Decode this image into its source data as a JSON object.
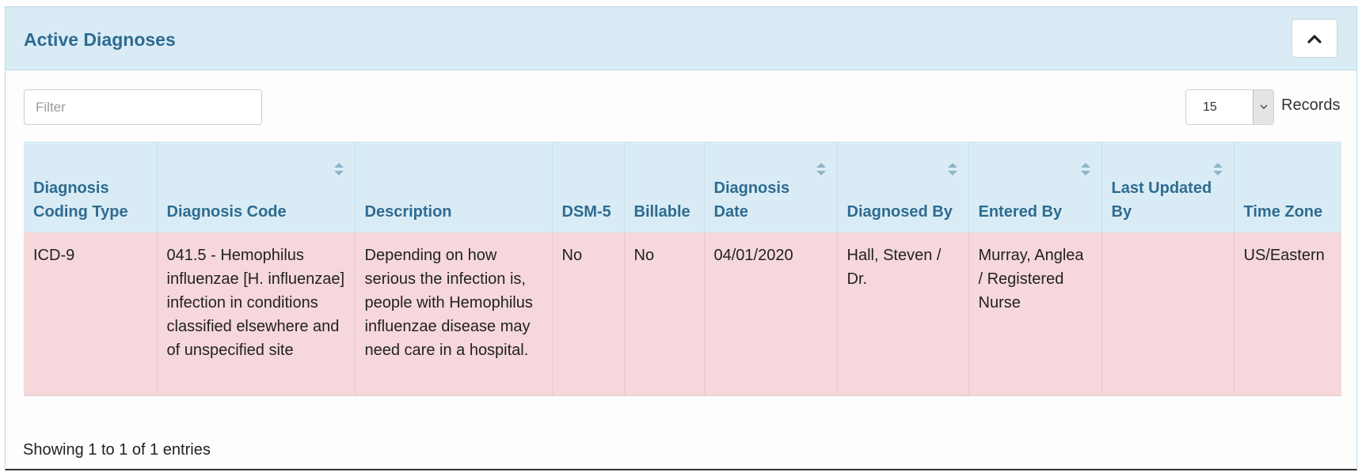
{
  "panel": {
    "title": "Active Diagnoses",
    "collapse_icon": "chevron-up-icon"
  },
  "controls": {
    "filter_placeholder": "Filter",
    "filter_value": "",
    "records_value": "15",
    "records_label": "Records"
  },
  "table": {
    "columns": [
      {
        "label": "Diagnosis Coding Type",
        "sortable": false
      },
      {
        "label": "Diagnosis Code",
        "sortable": true
      },
      {
        "label": "Description",
        "sortable": false
      },
      {
        "label": "DSM-5",
        "sortable": false
      },
      {
        "label": "Billable",
        "sortable": false
      },
      {
        "label": "Diagnosis Date",
        "sortable": true
      },
      {
        "label": "Diagnosed By",
        "sortable": true
      },
      {
        "label": "Entered By",
        "sortable": true
      },
      {
        "label": "Last Updated By",
        "sortable": true
      },
      {
        "label": "Time Zone",
        "sortable": false
      }
    ],
    "rows": [
      {
        "cells": [
          "ICD-9",
          "041.5 - Hemophilus influenzae [H. influenzae] infection in conditions classified elsewhere and of unspecified site",
          "Depending on how serious the infection is, people with Hemophilus influenzae disease may need care in a hospital.",
          "No",
          "No",
          "04/01/2020",
          "Hall, Steven / Dr.",
          "Murray, Anglea / Registered Nurse",
          "",
          "US/Eastern"
        ]
      }
    ],
    "row_color": "#f6d7db",
    "header_color": "#d9ecf5",
    "accent_color": "#2e6b91"
  },
  "footer": {
    "info": "Showing 1 to 1 of 1 entries"
  }
}
